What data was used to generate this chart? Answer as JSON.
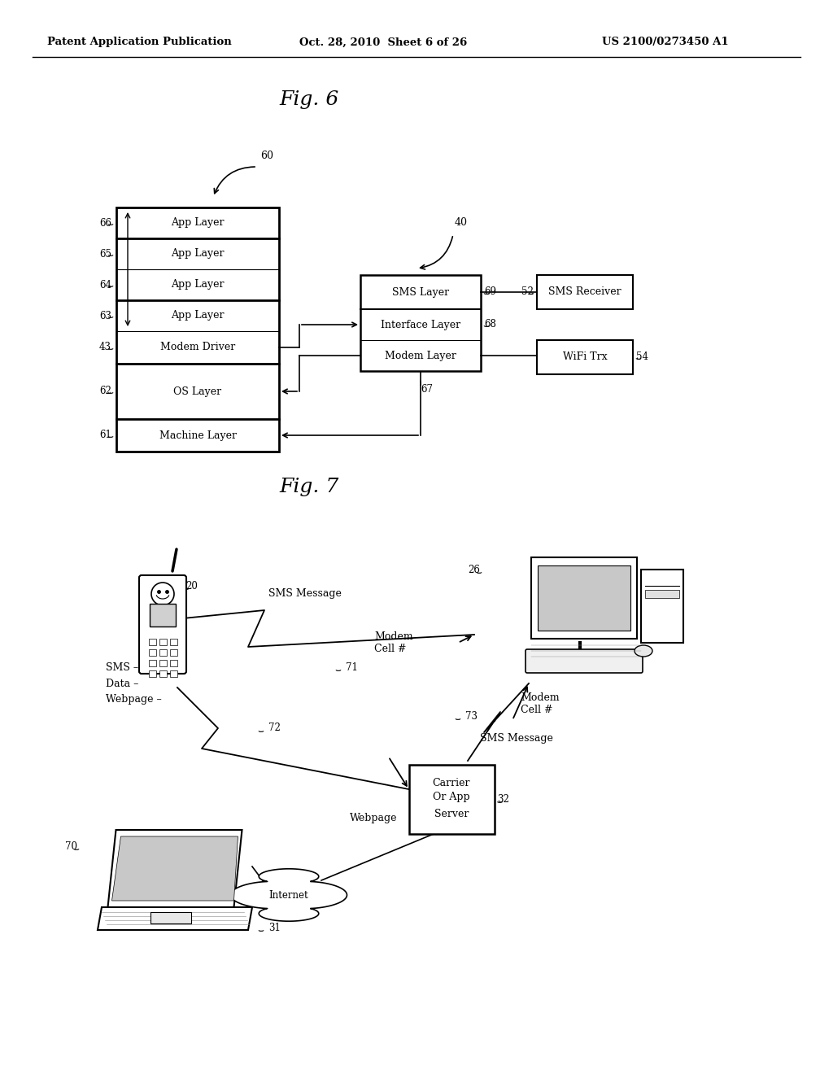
{
  "bg_color": "#ffffff",
  "header_left": "Patent Application Publication",
  "header_center": "Oct. 28, 2010  Sheet 6 of 26",
  "header_right": "US 2100/0273450 A1",
  "fig6_title": "Fig. 6",
  "fig7_title": "Fig. 7",
  "fig6_ref": "60",
  "fig6_left_labels": [
    "App Layer",
    "App Layer",
    "App Layer",
    "App Layer",
    "Modem Driver",
    "OS Layer",
    "Machine Layer"
  ],
  "fig6_left_refs": [
    "66",
    "65",
    "64",
    "63",
    "43",
    "62",
    "61"
  ],
  "fig6_right_labels": [
    "SMS Layer",
    "Interface Layer",
    "Modem Layer"
  ],
  "fig6_right_refs": [
    "69",
    "68",
    "67"
  ],
  "fig6_far_labels": [
    "SMS Receiver",
    "WiFi Trx"
  ],
  "fig6_far_refs": [
    "52",
    "54"
  ],
  "fig6_group_ref": "40"
}
